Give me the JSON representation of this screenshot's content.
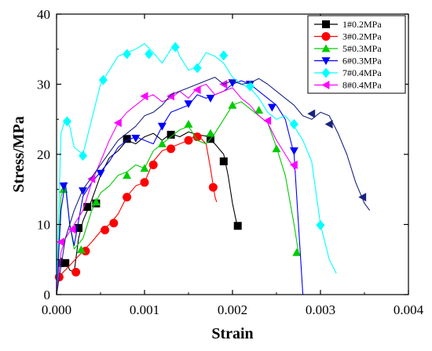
{
  "chart_data": {
    "type": "line",
    "xlabel": "Strain",
    "ylabel": "Stress/MPa",
    "xlim": [
      0,
      0.004
    ],
    "ylim": [
      0,
      40
    ],
    "xticks": [
      0,
      0.001,
      0.002,
      0.003,
      0.004
    ],
    "xtick_labels": [
      "0.000",
      "0.001",
      "0.002",
      "0.003",
      "0.004"
    ],
    "yticks": [
      0,
      10,
      20,
      30,
      40
    ],
    "ytick_labels": [
      "0",
      "10",
      "20",
      "30",
      "40"
    ],
    "grid": false,
    "legend_position": "top-right",
    "series": [
      {
        "name": "1#0.2MPa",
        "color": "#000000",
        "marker": "square",
        "points": [
          [
            0.0,
            0.0
          ],
          [
            2e-05,
            4.0
          ],
          [
            5e-05,
            5.2
          ],
          [
            0.0001,
            4.8
          ],
          [
            0.00015,
            3.5
          ],
          [
            0.0002,
            3.2
          ],
          [
            0.00025,
            8.0
          ],
          [
            0.0003,
            10.5
          ],
          [
            0.0004,
            13.5
          ],
          [
            0.0005,
            17.0
          ],
          [
            0.0006,
            19.5
          ],
          [
            0.0007,
            20.5
          ],
          [
            0.0008,
            22.0
          ],
          [
            0.0009,
            21.5
          ],
          [
            0.001,
            22.5
          ],
          [
            0.0011,
            23.0
          ],
          [
            0.0012,
            22.0
          ],
          [
            0.0013,
            23.0
          ],
          [
            0.0014,
            22.5
          ],
          [
            0.0015,
            23.2
          ],
          [
            0.0016,
            22.8
          ],
          [
            0.0017,
            22.6
          ],
          [
            0.00175,
            22.0
          ],
          [
            0.0018,
            21.5
          ],
          [
            0.0019,
            20.0
          ],
          [
            0.00195,
            17.0
          ],
          [
            0.002,
            13.0
          ],
          [
            0.00205,
            10.0
          ],
          [
            0.00208,
            10.2
          ]
        ],
        "marker_points": [
          [
            4e-05,
            4.5
          ],
          [
            0.0001,
            4.5
          ],
          [
            0.00025,
            9.5
          ],
          [
            0.00035,
            12.5
          ],
          [
            0.00045,
            13.0
          ],
          [
            0.0008,
            22.2
          ],
          [
            0.0013,
            22.8
          ],
          [
            0.00175,
            22.2
          ],
          [
            0.0019,
            19.0
          ],
          [
            0.00206,
            9.8
          ]
        ]
      },
      {
        "name": "3#0.2MPa",
        "color": "#ff0000",
        "marker": "circle",
        "points": [
          [
            0.0,
            0.0
          ],
          [
            2e-05,
            2.5
          ],
          [
            0.0001,
            3.5
          ],
          [
            0.00025,
            5.5
          ],
          [
            0.0004,
            7.5
          ],
          [
            0.0005,
            9.0
          ],
          [
            0.0006,
            10.0
          ],
          [
            0.0007,
            11.5
          ],
          [
            0.0008,
            14.0
          ],
          [
            0.0009,
            15.5
          ],
          [
            0.001,
            16.0
          ],
          [
            0.0011,
            19.0
          ],
          [
            0.0012,
            20.5
          ],
          [
            0.0013,
            21.0
          ],
          [
            0.0014,
            21.5
          ],
          [
            0.0015,
            22.0
          ],
          [
            0.0016,
            22.8
          ],
          [
            0.0017,
            21.5
          ],
          [
            0.00175,
            18.0
          ],
          [
            0.0018,
            14.0
          ],
          [
            0.00182,
            13.2
          ]
        ],
        "marker_points": [
          [
            3e-05,
            2.5
          ],
          [
            0.00022,
            3.2
          ],
          [
            0.00033,
            6.2
          ],
          [
            0.00055,
            9.2
          ],
          [
            0.00065,
            10.2
          ],
          [
            0.0008,
            13.9
          ],
          [
            0.001,
            16.0
          ],
          [
            0.0011,
            18.5
          ],
          [
            0.0013,
            20.8
          ],
          [
            0.0015,
            22.0
          ],
          [
            0.0016,
            22.5
          ],
          [
            0.00178,
            15.3
          ]
        ]
      },
      {
        "name": "5#0.3MPa",
        "color": "#00cc00",
        "marker": "triangle-up",
        "points": [
          [
            0.0,
            0.0
          ],
          [
            5e-05,
            14.0
          ],
          [
            0.0001,
            15.5
          ],
          [
            0.00015,
            10.0
          ],
          [
            0.0002,
            6.5
          ],
          [
            0.0003,
            8.0
          ],
          [
            0.0004,
            12.0
          ],
          [
            0.0005,
            14.5
          ],
          [
            0.0006,
            15.5
          ],
          [
            0.0007,
            17.0
          ],
          [
            0.0008,
            17.5
          ],
          [
            0.0009,
            18.5
          ],
          [
            0.001,
            18.0
          ],
          [
            0.0011,
            20.5
          ],
          [
            0.0012,
            21.5
          ],
          [
            0.0013,
            22.5
          ],
          [
            0.0014,
            23.5
          ],
          [
            0.0015,
            24.0
          ],
          [
            0.0016,
            22.0
          ],
          [
            0.0017,
            21.5
          ],
          [
            0.0018,
            23.0
          ],
          [
            0.0019,
            25.0
          ],
          [
            0.002,
            27.0
          ],
          [
            0.0021,
            27.5
          ],
          [
            0.0022,
            26.5
          ],
          [
            0.0023,
            25.5
          ],
          [
            0.0024,
            24.5
          ],
          [
            0.0025,
            21.0
          ],
          [
            0.0026,
            17.0
          ],
          [
            0.0027,
            10.0
          ],
          [
            0.00275,
            6.0
          ]
        ],
        "marker_points": [
          [
            8e-05,
            15.0
          ],
          [
            0.00028,
            6.4
          ],
          [
            0.00045,
            13.2
          ],
          [
            0.0008,
            17.0
          ],
          [
            0.001,
            18.0
          ],
          [
            0.0012,
            21.5
          ],
          [
            0.0015,
            24.3
          ],
          [
            0.00175,
            23.0
          ],
          [
            0.002,
            27.0
          ],
          [
            0.0023,
            26.3
          ],
          [
            0.0025,
            20.8
          ],
          [
            0.00273,
            6.0
          ]
        ]
      },
      {
        "name": "6#0.3MPa",
        "color": "#0000ff",
        "marker": "triangle-down",
        "points": [
          [
            0.0,
            0.0
          ],
          [
            5e-05,
            12.0
          ],
          [
            0.0001,
            16.0
          ],
          [
            0.00015,
            10.0
          ],
          [
            0.0002,
            7.0
          ],
          [
            0.0003,
            14.0
          ],
          [
            0.0004,
            16.0
          ],
          [
            0.0005,
            17.5
          ],
          [
            0.0006,
            19.0
          ],
          [
            0.0007,
            21.0
          ],
          [
            0.0008,
            22.0
          ],
          [
            0.0009,
            22.5
          ],
          [
            0.001,
            22.0
          ],
          [
            0.0011,
            21.5
          ],
          [
            0.0012,
            24.0
          ],
          [
            0.0013,
            26.0
          ],
          [
            0.0014,
            26.5
          ],
          [
            0.0015,
            27.0
          ],
          [
            0.0016,
            28.5
          ],
          [
            0.0017,
            28.0
          ],
          [
            0.0018,
            28.5
          ],
          [
            0.0019,
            29.0
          ],
          [
            0.002,
            30.0
          ],
          [
            0.0021,
            30.5
          ],
          [
            0.0022,
            30.0
          ],
          [
            0.0023,
            29.0
          ],
          [
            0.0024,
            28.0
          ],
          [
            0.0025,
            27.0
          ],
          [
            0.0026,
            25.0
          ],
          [
            0.0027,
            20.0
          ],
          [
            0.00275,
            10.0
          ],
          [
            0.0028,
            0.0
          ]
        ],
        "marker_points": [
          [
            8e-05,
            15.5
          ],
          [
            0.0003,
            14.8
          ],
          [
            0.0005,
            17.3
          ],
          [
            0.0009,
            22.3
          ],
          [
            0.0012,
            24.0
          ],
          [
            0.0015,
            27.2
          ],
          [
            0.00175,
            28.0
          ],
          [
            0.002,
            30.2
          ],
          [
            0.0022,
            30.0
          ],
          [
            0.00245,
            26.7
          ],
          [
            0.0027,
            20.5
          ]
        ]
      },
      {
        "name": "7#0.4MPa",
        "color": "#00ffff",
        "marker": "diamond",
        "points": [
          [
            0.0,
            0.0
          ],
          [
            5e-05,
            23.0
          ],
          [
            0.0001,
            25.0
          ],
          [
            0.00015,
            24.0
          ],
          [
            0.0002,
            21.0
          ],
          [
            0.0003,
            20.0
          ],
          [
            0.0004,
            25.0
          ],
          [
            0.0005,
            30.0
          ],
          [
            0.0006,
            32.0
          ],
          [
            0.0007,
            34.0
          ],
          [
            0.0008,
            34.5
          ],
          [
            0.0009,
            35.0
          ],
          [
            0.001,
            35.8
          ],
          [
            0.0011,
            34.5
          ],
          [
            0.0012,
            33.0
          ],
          [
            0.0013,
            35.0
          ],
          [
            0.00135,
            35.5
          ],
          [
            0.0014,
            34.0
          ],
          [
            0.0015,
            32.0
          ],
          [
            0.0016,
            32.5
          ],
          [
            0.0017,
            34.5
          ],
          [
            0.0018,
            34.0
          ],
          [
            0.0019,
            33.0
          ],
          [
            0.002,
            31.0
          ],
          [
            0.0021,
            30.0
          ],
          [
            0.0022,
            29.5
          ],
          [
            0.0023,
            28.0
          ],
          [
            0.0024,
            26.0
          ],
          [
            0.0025,
            25.0
          ],
          [
            0.0026,
            25.5
          ],
          [
            0.0027,
            24.0
          ],
          [
            0.0028,
            22.0
          ],
          [
            0.0029,
            19.0
          ],
          [
            0.003,
            10.0
          ],
          [
            0.0031,
            5.0
          ],
          [
            0.00318,
            3.0
          ]
        ],
        "marker_points": [
          [
            0.00012,
            24.7
          ],
          [
            0.0003,
            19.8
          ],
          [
            0.00053,
            30.6
          ],
          [
            0.0008,
            34.3
          ],
          [
            0.00105,
            34.3
          ],
          [
            0.00135,
            35.3
          ],
          [
            0.0016,
            32.3
          ],
          [
            0.0019,
            34.1
          ],
          [
            0.0022,
            29.7
          ],
          [
            0.0027,
            24.3
          ],
          [
            0.003,
            9.9
          ]
        ]
      },
      {
        "name": "8#0.4MPa",
        "color": "#ff00ff",
        "marker": "triangle-left",
        "points": [
          [
            0.0,
            0.0
          ],
          [
            5e-05,
            6.0
          ],
          [
            0.0001,
            8.0
          ],
          [
            0.00015,
            9.0
          ],
          [
            0.0002,
            10.0
          ],
          [
            0.0003,
            12.0
          ],
          [
            0.0004,
            16.0
          ],
          [
            0.0005,
            19.0
          ],
          [
            0.0006,
            22.0
          ],
          [
            0.0007,
            24.5
          ],
          [
            0.0008,
            26.0
          ],
          [
            0.0009,
            27.0
          ],
          [
            0.001,
            28.0
          ],
          [
            0.0011,
            28.5
          ],
          [
            0.0012,
            27.5
          ],
          [
            0.0013,
            28.0
          ],
          [
            0.0014,
            29.0
          ],
          [
            0.0015,
            28.0
          ],
          [
            0.0016,
            29.5
          ],
          [
            0.0017,
            30.0
          ],
          [
            0.0018,
            28.5
          ],
          [
            0.0019,
            29.0
          ],
          [
            0.002,
            29.5
          ],
          [
            0.0021,
            28.0
          ],
          [
            0.0022,
            27.0
          ],
          [
            0.0023,
            25.5
          ],
          [
            0.0024,
            24.5
          ],
          [
            0.0025,
            22.0
          ],
          [
            0.0026,
            20.0
          ],
          [
            0.0027,
            18.0
          ],
          [
            0.00272,
            17.5
          ]
        ],
        "marker_points": [
          [
            5e-05,
            7.5
          ],
          [
            0.00018,
            9.3
          ],
          [
            0.0004,
            16.5
          ],
          [
            0.0007,
            24.5
          ],
          [
            0.001,
            28.3
          ],
          [
            0.0013,
            28.3
          ],
          [
            0.0016,
            29.2
          ],
          [
            0.0019,
            30.0
          ],
          [
            0.0024,
            24.8
          ],
          [
            0.0027,
            18.5
          ]
        ]
      },
      {
        "name": "",
        "color": "#1a237e",
        "marker": "triangle-left",
        "points": [
          [
            0.0,
            0.0
          ],
          [
            0.0001,
            8.0
          ],
          [
            0.0002,
            12.0
          ],
          [
            0.0003,
            15.0
          ],
          [
            0.0005,
            18.5
          ],
          [
            0.0007,
            22.0
          ],
          [
            0.0009,
            24.0
          ],
          [
            0.001,
            25.5
          ],
          [
            0.0011,
            26.0
          ],
          [
            0.0012,
            27.0
          ],
          [
            0.0013,
            28.5
          ],
          [
            0.0014,
            29.0
          ],
          [
            0.0015,
            29.5
          ],
          [
            0.0016,
            30.0
          ],
          [
            0.0017,
            30.5
          ],
          [
            0.0018,
            31.0
          ],
          [
            0.0019,
            30.0
          ],
          [
            0.002,
            30.5
          ],
          [
            0.0021,
            30.0
          ],
          [
            0.0022,
            30.2
          ],
          [
            0.0023,
            30.8
          ],
          [
            0.0024,
            30.0
          ],
          [
            0.0025,
            29.0
          ],
          [
            0.0026,
            28.0
          ],
          [
            0.0027,
            27.0
          ],
          [
            0.0028,
            25.5
          ],
          [
            0.0029,
            25.0
          ],
          [
            0.003,
            26.0
          ],
          [
            0.0031,
            25.5
          ],
          [
            0.0032,
            23.0
          ],
          [
            0.0033,
            20.0
          ],
          [
            0.0034,
            16.0
          ],
          [
            0.0035,
            13.0
          ],
          [
            0.00356,
            12.0
          ]
        ],
        "marker_points": [
          [
            0.0029,
            25.8
          ],
          [
            0.0031,
            24.3
          ],
          [
            0.00348,
            13.9
          ]
        ]
      }
    ]
  }
}
